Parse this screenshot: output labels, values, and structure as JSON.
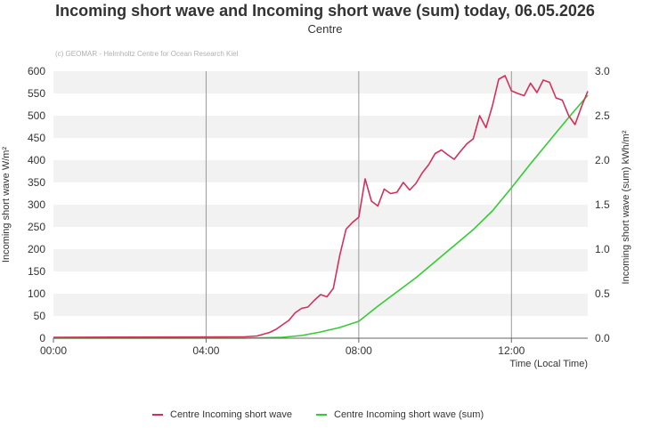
{
  "title": "Incoming short wave and Incoming short wave (sum) today, 06.05.2026",
  "subtitle": "Centre",
  "credit": "(c) GEOMAR - Helmholtz Centre for Ocean Research Kiel",
  "colors": {
    "series1": "#d32f5a",
    "series2": "#33cc33",
    "band": "#f2f2f2",
    "vline": "#999999"
  },
  "chart_data": {
    "type": "line",
    "title": "Incoming short wave and Incoming short wave (sum) today, 06.05.2026",
    "subtitle": "Centre",
    "xlabel": "Time (Local Time)",
    "ylabel_left": "Incoming short wave W/m²",
    "ylabel_right": "Incoming short wave (sum) kWh/m²",
    "xlim": [
      "00:00",
      "14:00"
    ],
    "ylim_left": [
      0,
      600
    ],
    "ylim_right": [
      0,
      3
    ],
    "x_ticks": [
      "00:00",
      "04:00",
      "08:00",
      "12:00"
    ],
    "y_ticks_left": [
      "0",
      "50",
      "100",
      "150",
      "200",
      "250",
      "300",
      "350",
      "400",
      "450",
      "500",
      "550",
      "600"
    ],
    "y_ticks_right": [
      "0.0",
      "0.5",
      "1.0",
      "1.5",
      "2.0",
      "2.5",
      "3.0"
    ],
    "grid": "alternating horizontal bands, vertical lines at 04:00, 08:00, 12:00",
    "legend_position": "bottom-center",
    "series": [
      {
        "name": "Centre Incoming short wave",
        "axis": "left",
        "x": [
          "00:00",
          "05:00",
          "05:20",
          "05:40",
          "05:50",
          "06:00",
          "06:10",
          "06:20",
          "06:30",
          "06:40",
          "06:50",
          "07:00",
          "07:10",
          "07:20",
          "07:30",
          "07:40",
          "07:50",
          "08:00",
          "08:10",
          "08:20",
          "08:30",
          "08:40",
          "08:50",
          "09:00",
          "09:10",
          "09:20",
          "09:30",
          "09:40",
          "09:50",
          "10:00",
          "10:10",
          "10:20",
          "10:30",
          "10:40",
          "10:50",
          "11:00",
          "11:10",
          "11:20",
          "11:30",
          "11:40",
          "11:50",
          "12:00",
          "12:10",
          "12:20",
          "12:30",
          "12:40",
          "12:50",
          "13:00",
          "13:10",
          "13:20",
          "13:30",
          "13:40",
          "13:50",
          "14:00"
        ],
        "y": [
          2,
          3,
          5,
          13,
          20,
          30,
          40,
          57,
          67,
          70,
          85,
          98,
          93,
          112,
          185,
          245,
          260,
          272,
          358,
          308,
          297,
          335,
          325,
          328,
          350,
          333,
          348,
          372,
          390,
          415,
          423,
          412,
          402,
          420,
          437,
          448,
          500,
          473,
          522,
          582,
          590,
          556,
          550,
          545,
          573,
          552,
          580,
          575,
          540,
          535,
          500,
          480,
          520,
          555
        ]
      },
      {
        "name": "Centre Incoming short wave (sum)",
        "axis": "right",
        "x": [
          "00:00",
          "05:00",
          "06:00",
          "06:30",
          "07:00",
          "07:30",
          "08:00",
          "08:30",
          "09:00",
          "09:30",
          "10:00",
          "10:30",
          "11:00",
          "11:30",
          "12:00",
          "12:30",
          "13:00",
          "13:30",
          "14:00"
        ],
        "y": [
          0,
          0,
          0.01,
          0.03,
          0.07,
          0.12,
          0.19,
          0.36,
          0.52,
          0.68,
          0.86,
          1.04,
          1.22,
          1.43,
          1.69,
          1.96,
          2.22,
          2.48,
          2.73
        ]
      }
    ]
  }
}
